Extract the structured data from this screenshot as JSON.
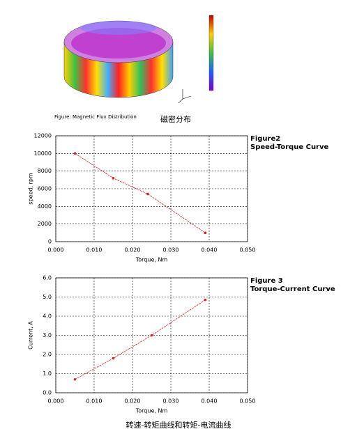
{
  "figure1": {
    "caption": "Figure: Magnetic Flux Distribution",
    "caption_cn": "磁密分布"
  },
  "chart_data": [
    {
      "type": "line",
      "title": "Figure2",
      "subtitle": "Speed-Torque Curve",
      "x_label": "Torque, Nm",
      "y_label": "speed, rpm",
      "x": [
        0.005,
        0.015,
        0.024,
        0.039
      ],
      "values": [
        10000,
        7200,
        5400,
        1000
      ],
      "color": "#e02020",
      "xlim": [
        0,
        0.05
      ],
      "xticks": [
        {
          "value": 0,
          "label": "0.000"
        },
        {
          "value": 0.01,
          "label": "0.010"
        },
        {
          "value": 0.02,
          "label": "0.020"
        },
        {
          "value": 0.03,
          "label": "0.030"
        },
        {
          "value": 0.04,
          "label": "0.040"
        },
        {
          "value": 0.05,
          "label": "0.050"
        }
      ],
      "ylim": [
        0,
        12000
      ],
      "yticks": [
        0,
        2000,
        4000,
        6000,
        8000,
        10000,
        12000
      ],
      "grid": true
    },
    {
      "type": "line",
      "title": "Figure 3",
      "subtitle": "Torque-Current Curve",
      "x_label": "Torque, Nm",
      "y_label": "Current, A",
      "x": [
        0.005,
        0.015,
        0.025,
        0.039
      ],
      "values": [
        0.7,
        1.8,
        3.0,
        4.85
      ],
      "color": "#e02020",
      "xlim": [
        0,
        0.05
      ],
      "xticks": [
        {
          "value": 0,
          "label": "0.000"
        },
        {
          "value": 0.01,
          "label": "0.010"
        },
        {
          "value": 0.02,
          "label": "0.020"
        },
        {
          "value": 0.03,
          "label": "0.030"
        },
        {
          "value": 0.04,
          "label": "0.040"
        },
        {
          "value": 0.05,
          "label": "0.050"
        }
      ],
      "ylim": [
        0,
        6
      ],
      "yticks": [
        {
          "value": 0,
          "label": "0.0"
        },
        {
          "value": 1,
          "label": "1.0"
        },
        {
          "value": 2,
          "label": "2.0"
        },
        {
          "value": 3,
          "label": "3.0"
        },
        {
          "value": 4,
          "label": "4.0"
        },
        {
          "value": 5,
          "label": "5.0"
        },
        {
          "value": 6,
          "label": "6.0"
        }
      ],
      "grid": true
    }
  ],
  "footer_caption": "转速-转矩曲线和转矩-电流曲线"
}
